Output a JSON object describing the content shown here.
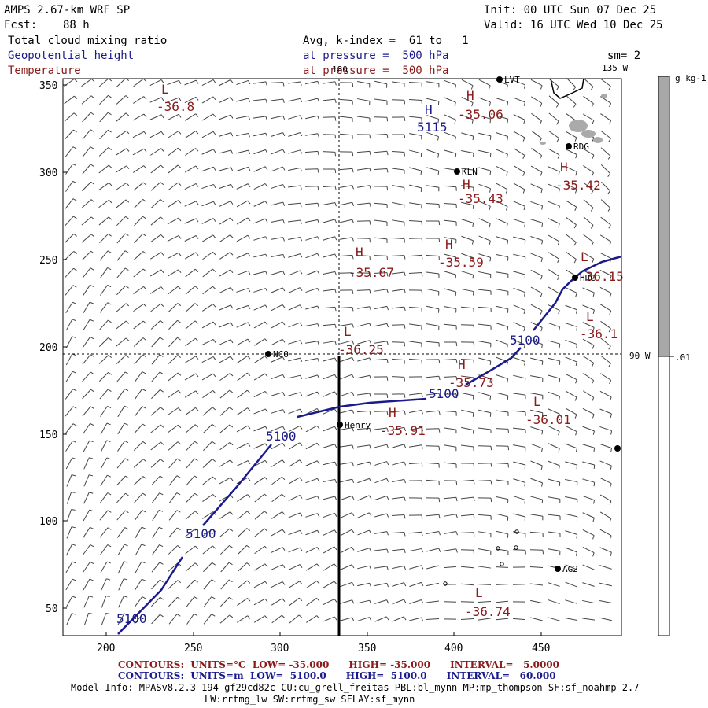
{
  "header": {
    "title": "AMPS 2.67-km WRF SP",
    "init": "Init: 00 UTC Sun 07 Dec 25",
    "fcst_label": "Fcst:",
    "fcst_value": "88 h",
    "valid": "Valid: 16 UTC Wed 10 Dec 25",
    "field1": "Total cloud mixing ratio",
    "field2": "Geopotential height",
    "field3": "Temperature",
    "avg": "Avg, k-index =  61 to   1",
    "pressure2": "at pressure =  500 hPa",
    "pressure3": "at pressure =  500 hPa",
    "sm": "sm= 2"
  },
  "map": {
    "xticks": [
      "200",
      "250",
      "300",
      "350",
      "400",
      "450"
    ],
    "yticks": [
      "50",
      "100",
      "150",
      "200",
      "250",
      "300",
      "350"
    ],
    "meridian_180": "180",
    "meridian_135": "135 W",
    "meridian_90": "90 W",
    "stations": [
      "LVT",
      "RDG",
      "KLN",
      "HRC",
      "NCO",
      "Henry",
      "AG2"
    ],
    "height_contour_label": "5100",
    "highs_lows": [
      {
        "type": "L",
        "value": "-36.8"
      },
      {
        "type": "H",
        "value": "-35.06"
      },
      {
        "type": "H",
        "value": "5115"
      },
      {
        "type": "H",
        "value": "-35.42"
      },
      {
        "type": "H",
        "value": "-35.43"
      },
      {
        "type": "H",
        "value": "-35.67"
      },
      {
        "type": "H",
        "value": "-35.59"
      },
      {
        "type": "L",
        "value": "-36.15"
      },
      {
        "type": "L",
        "value": "-36.1"
      },
      {
        "type": "L",
        "value": "-36.25"
      },
      {
        "type": "H",
        "value": "-35.73"
      },
      {
        "type": "L",
        "value": "-36.01"
      },
      {
        "type": "H",
        "value": "-35.91"
      },
      {
        "type": "L",
        "value": "-36.74"
      }
    ]
  },
  "colorbar": {
    "units": "g kg-1",
    "tick": ".01"
  },
  "footer": {
    "contours_temp": "CONTOURS:  UNITS=°C  LOW= -35.000      HIGH= -35.000      INTERVAL=   5.0000",
    "contours_height": "CONTOURS:  UNITS=m  LOW=  5100.0      HIGH=  5100.0      INTERVAL=   60.000",
    "model_info": "Model Info: MPASv8.2.3-194-gf29cd82c CU:cu_grell_freitas PBL:bl_mynn MP:mp_thompson SF:sf_noahmp 2.7",
    "model_info2": "LW:rrtmg_lw SW:rrtmg_sw SFLAY:sf_mynn"
  },
  "colors": {
    "height": "#1a1a8c",
    "temperature": "#8b1a1a"
  }
}
